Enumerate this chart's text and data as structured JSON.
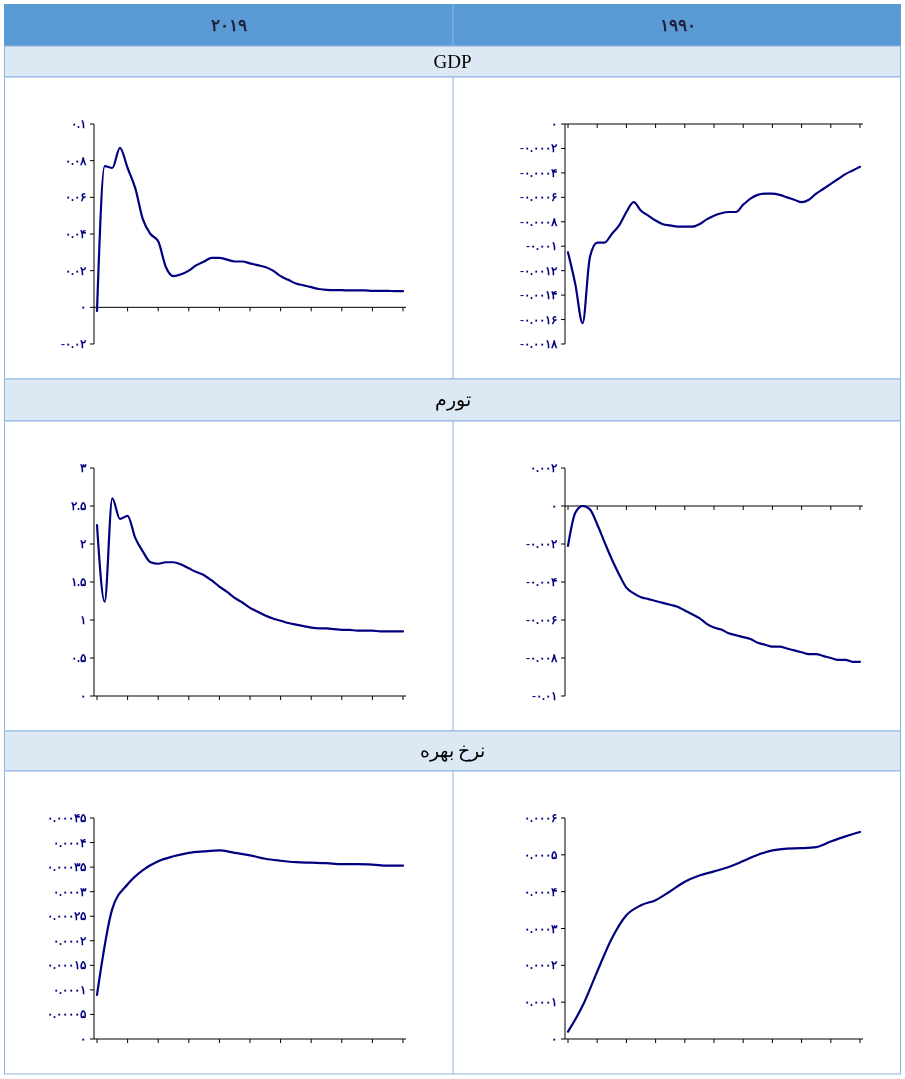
{
  "chart_data": [
    {
      "type": "other",
      "title": "GDP"
    },
    {
      "type": "line",
      "subtitle": "۲۰۱۹",
      "color": "#000080",
      "categories": [
        null,
        null,
        null,
        null,
        null,
        null,
        null,
        null,
        null,
        null,
        null,
        null,
        null,
        null,
        null,
        null,
        null,
        null,
        null,
        null,
        null,
        null,
        null,
        null,
        null,
        null,
        null,
        null,
        null,
        null,
        null,
        null,
        null,
        null,
        null,
        null,
        null,
        null,
        null,
        null,
        null
      ],
      "values": [
        -0.002,
        0.077,
        0.076,
        0.087,
        0.076,
        0.065,
        0.048,
        0.04,
        0.036,
        0.022,
        0.017,
        0.018,
        0.02,
        0.023,
        0.025,
        0.027,
        0.027,
        0.026,
        0.025,
        0.025,
        0.024,
        0.023,
        0.022,
        0.02,
        0.017,
        0.015,
        0.013,
        0.012,
        0.011,
        0.01,
        0.0095,
        0.0094,
        0.0094,
        0.0092,
        0.0092,
        0.0092,
        0.009,
        0.009,
        0.009,
        0.0088,
        0.0088
      ],
      "ylim": [
        -0.02,
        0.1
      ],
      "yticks": [
        {
          "value": 0.1,
          "label": "۰.۱"
        },
        {
          "value": 0.08,
          "label": "۰.۰۸"
        },
        {
          "value": 0.06,
          "label": "۰.۰۶"
        },
        {
          "value": 0.04,
          "label": "۰.۰۴"
        },
        {
          "value": 0.02,
          "label": "۰.۰۲"
        },
        {
          "value": 0,
          "label": "۰"
        },
        {
          "value": -0.02,
          "label": "-۰.۰۲"
        }
      ]
    },
    {
      "type": "line",
      "subtitle": "۱۹۹۰",
      "color": "#000080",
      "categories": [
        null,
        null,
        null,
        null,
        null,
        null,
        null,
        null,
        null,
        null,
        null,
        null,
        null,
        null,
        null,
        null,
        null,
        null,
        null,
        null,
        null,
        null,
        null,
        null,
        null,
        null,
        null,
        null,
        null,
        null,
        null,
        null,
        null,
        null,
        null,
        null,
        null,
        null,
        null,
        null,
        null
      ],
      "values": [
        -0.00105,
        -0.00131,
        -0.00163,
        -0.00109,
        -0.00097,
        -0.00097,
        -0.0009,
        -0.00083,
        -0.00072,
        -0.00064,
        -0.00071,
        -0.00075,
        -0.00079,
        -0.00082,
        -0.00083,
        -0.00084,
        -0.00084,
        -0.00084,
        -0.00082,
        -0.00078,
        -0.00075,
        -0.00073,
        -0.00072,
        -0.00072,
        -0.00066,
        -0.00061,
        -0.00058,
        -0.00057,
        -0.00057,
        -0.00058,
        -0.0006,
        -0.00062,
        -0.00064,
        -0.00062,
        -0.00057,
        -0.00053,
        -0.00049,
        -0.00045,
        -0.00041,
        -0.00038,
        -0.00035
      ],
      "ylim": [
        -0.0018,
        0
      ],
      "yticks": [
        {
          "value": 0,
          "label": "۰"
        },
        {
          "value": -0.0002,
          "label": "-۰.۰۰۰۲"
        },
        {
          "value": -0.0004,
          "label": "-۰.۰۰۰۴"
        },
        {
          "value": -0.0006,
          "label": "-۰.۰۰۰۶"
        },
        {
          "value": -0.0008,
          "label": "-۰.۰۰۰۸"
        },
        {
          "value": -0.001,
          "label": "-۰.۰۰۱"
        },
        {
          "value": -0.0012,
          "label": "-۰.۰۰۱۲"
        },
        {
          "value": -0.0014,
          "label": "-۰.۰۰۱۴"
        },
        {
          "value": -0.0016,
          "label": "-۰.۰۰۱۶"
        },
        {
          "value": -0.0018,
          "label": "-۰.۰۰۱۸"
        }
      ]
    },
    {
      "type": "other",
      "title": "تورم"
    },
    {
      "type": "line",
      "color": "#000080",
      "categories": [
        null,
        null,
        null,
        null,
        null,
        null,
        null,
        null,
        null,
        null,
        null,
        null,
        null,
        null,
        null,
        null,
        null,
        null,
        null,
        null,
        null,
        null,
        null,
        null,
        null,
        null,
        null,
        null,
        null,
        null,
        null,
        null,
        null,
        null,
        null,
        null,
        null,
        null,
        null,
        null,
        null
      ],
      "values": [
        2.25,
        1.24,
        2.6,
        2.33,
        2.37,
        2.08,
        1.9,
        1.76,
        1.74,
        1.76,
        1.76,
        1.73,
        1.68,
        1.63,
        1.59,
        1.52,
        1.44,
        1.37,
        1.29,
        1.23,
        1.16,
        1.11,
        1.06,
        1.02,
        0.99,
        0.96,
        0.94,
        0.92,
        0.9,
        0.89,
        0.89,
        0.88,
        0.87,
        0.87,
        0.86,
        0.86,
        0.86,
        0.85,
        0.85,
        0.85,
        0.85
      ],
      "ylim": [
        0,
        3
      ],
      "yticks": [
        {
          "value": 3,
          "label": "۳"
        },
        {
          "value": 2.5,
          "label": "۲.۵"
        },
        {
          "value": 2,
          "label": "۲"
        },
        {
          "value": 1.5,
          "label": "۱.۵"
        },
        {
          "value": 1,
          "label": "۱"
        },
        {
          "value": 0.5,
          "label": "۰.۵"
        },
        {
          "value": 0,
          "label": "۰"
        }
      ]
    },
    {
      "type": "line",
      "color": "#000080",
      "categories": [
        null,
        null,
        null,
        null,
        null,
        null,
        null,
        null,
        null,
        null,
        null,
        null,
        null,
        null,
        null,
        null,
        null,
        null,
        null,
        null,
        null,
        null,
        null,
        null,
        null,
        null,
        null,
        null,
        null,
        null,
        null,
        null,
        null,
        null,
        null,
        null,
        null,
        null,
        null,
        null,
        null
      ],
      "values": [
        -0.0021,
        -0.00036,
        0,
        -0.00018,
        -0.00096,
        -0.0019,
        -0.0028,
        -0.0036,
        -0.0043,
        -0.0046,
        -0.0048,
        -0.0049,
        -0.005,
        -0.0051,
        -0.0052,
        -0.0053,
        -0.0055,
        -0.0057,
        -0.0059,
        -0.0062,
        -0.0064,
        -0.0065,
        -0.0067,
        -0.0068,
        -0.0069,
        -0.007,
        -0.0072,
        -0.0073,
        -0.0074,
        -0.0074,
        -0.0075,
        -0.0076,
        -0.0077,
        -0.0078,
        -0.0078,
        -0.0079,
        -0.008,
        -0.0081,
        -0.0081,
        -0.0082,
        -0.0082
      ],
      "ylim": [
        -0.01,
        0.002
      ],
      "yticks": [
        {
          "value": 0.002,
          "label": "۰.۰۰۲"
        },
        {
          "value": 0,
          "label": "۰"
        },
        {
          "value": -0.002,
          "label": "-۰.۰۰۲"
        },
        {
          "value": -0.004,
          "label": "-۰.۰۰۴"
        },
        {
          "value": -0.006,
          "label": "-۰.۰۰۶"
        },
        {
          "value": -0.008,
          "label": "-۰.۰۰۸"
        },
        {
          "value": -0.01,
          "label": "-۰.۰۱"
        }
      ]
    },
    {
      "type": "other",
      "title": "نرخ بهره"
    },
    {
      "type": "line",
      "color": "#000080",
      "categories": [
        null,
        null,
        null,
        null,
        null,
        null,
        null,
        null,
        null,
        null,
        null,
        null,
        null,
        null,
        null,
        null,
        null,
        null,
        null,
        null,
        null
      ],
      "values": [
        9e-05,
        0.000265,
        0.000315,
        0.000344,
        0.000362,
        0.000372,
        0.000379,
        0.000382,
        0.000384,
        0.000379,
        0.000374,
        0.000367,
        0.000363,
        0.00036,
        0.000359,
        0.000358,
        0.000356,
        0.000356,
        0.000355,
        0.000353,
        0.000353
      ],
      "ylim": [
        0,
        0.00045
      ],
      "yticks": [
        {
          "value": 0.00045,
          "label": "۰.۰۰۰۴۵"
        },
        {
          "value": 0.0004,
          "label": "۰.۰۰۰۴"
        },
        {
          "value": 0.00035,
          "label": "۰.۰۰۰۳۵"
        },
        {
          "value": 0.0003,
          "label": "۰.۰۰۰۳"
        },
        {
          "value": 0.00025,
          "label": "۰.۰۰۰۲۵"
        },
        {
          "value": 0.0002,
          "label": "۰.۰۰۰۲"
        },
        {
          "value": 0.00015,
          "label": "۰.۰۰۰۱۵"
        },
        {
          "value": 0.0001,
          "label": "۰.۰۰۰۱"
        },
        {
          "value": 5e-05,
          "label": "۰.۰۰۰۰۵"
        },
        {
          "value": 0,
          "label": "۰"
        }
      ]
    },
    {
      "type": "line",
      "color": "#000080",
      "categories": [
        null,
        null,
        null,
        null,
        null,
        null,
        null,
        null,
        null,
        null,
        null,
        null,
        null,
        null,
        null,
        null,
        null,
        null,
        null,
        null,
        null
      ],
      "values": [
        2e-05,
        9e-05,
        0.000183,
        0.000273,
        0.000336,
        0.000363,
        0.000377,
        0.000401,
        0.000427,
        0.000444,
        0.000455,
        0.000467,
        0.000483,
        0.0005,
        0.000512,
        0.000517,
        0.000518,
        0.000521,
        0.000536,
        0.00055,
        0.000562
      ],
      "ylim": [
        0,
        0.0006
      ],
      "yticks": [
        {
          "value": 0.0006,
          "label": "۰.۰۰۰۶"
        },
        {
          "value": 0.0005,
          "label": "۰.۰۰۰۵"
        },
        {
          "value": 0.0004,
          "label": "۰.۰۰۰۴"
        },
        {
          "value": 0.0003,
          "label": "۰.۰۰۰۳"
        },
        {
          "value": 0.0002,
          "label": "۰.۰۰۰۲"
        },
        {
          "value": 0.0001,
          "label": "۰.۰۰۰۱"
        },
        {
          "value": 0,
          "label": "۰"
        }
      ]
    }
  ]
}
